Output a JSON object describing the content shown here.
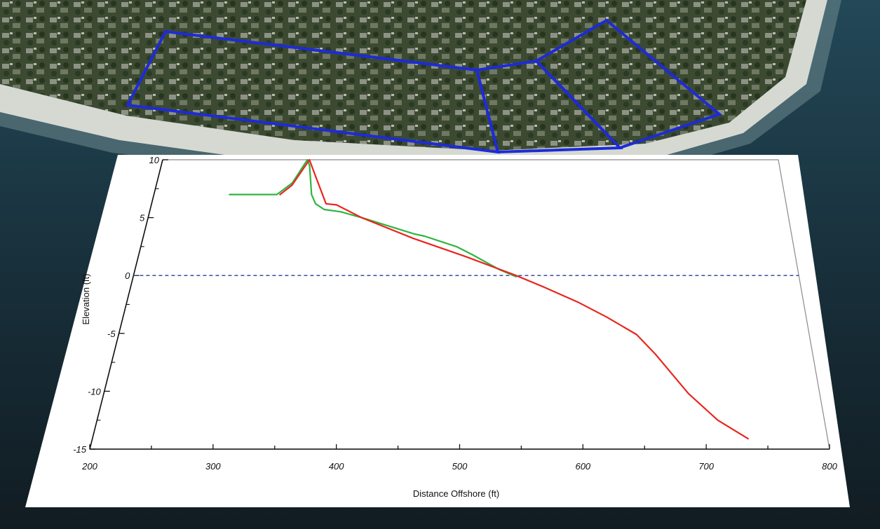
{
  "chart_data": {
    "type": "line",
    "title": "",
    "xlabel": "Distance Offshore (ft)",
    "ylabel": "Elevation (ft)",
    "xlim": [
      200,
      800
    ],
    "ylim": [
      -15,
      10
    ],
    "x_ticks": [
      200,
      300,
      400,
      500,
      600,
      700,
      800
    ],
    "y_ticks": [
      10,
      5,
      0,
      -5,
      -10,
      -15
    ],
    "grid": false,
    "legend": "none",
    "reference_line": {
      "y": 0,
      "style": "dashed",
      "color": "#2b3a9a"
    },
    "series": [
      {
        "color": "#2fb540",
        "points": [
          [
            272,
            7
          ],
          [
            317,
            7
          ],
          [
            330,
            8
          ],
          [
            341,
            10
          ],
          [
            344,
            9.5
          ],
          [
            350,
            7
          ],
          [
            355,
            6.2
          ],
          [
            364,
            5.7
          ],
          [
            380,
            5.5
          ],
          [
            400,
            5
          ],
          [
            450,
            3.6
          ],
          [
            460,
            3.4
          ],
          [
            490,
            2.5
          ],
          [
            505,
            1.8
          ],
          [
            530,
            0.5
          ],
          [
            545,
            -0.1
          ]
        ]
      },
      {
        "color": "#e8261f",
        "points": [
          [
            320,
            7
          ],
          [
            330,
            7.8
          ],
          [
            343,
            10
          ],
          [
            350,
            8.8
          ],
          [
            365,
            6.2
          ],
          [
            375,
            6.1
          ],
          [
            400,
            5
          ],
          [
            450,
            3.2
          ],
          [
            500,
            1.6
          ],
          [
            545,
            0
          ],
          [
            570,
            -1
          ],
          [
            600,
            -2.3
          ],
          [
            625,
            -3.6
          ],
          [
            650,
            -5.1
          ],
          [
            665,
            -6.8
          ],
          [
            690,
            -10.2
          ],
          [
            712,
            -12.5
          ],
          [
            735,
            -14.1
          ]
        ]
      }
    ]
  },
  "map_overlay": {
    "outline_color": "#1d2bd8"
  }
}
